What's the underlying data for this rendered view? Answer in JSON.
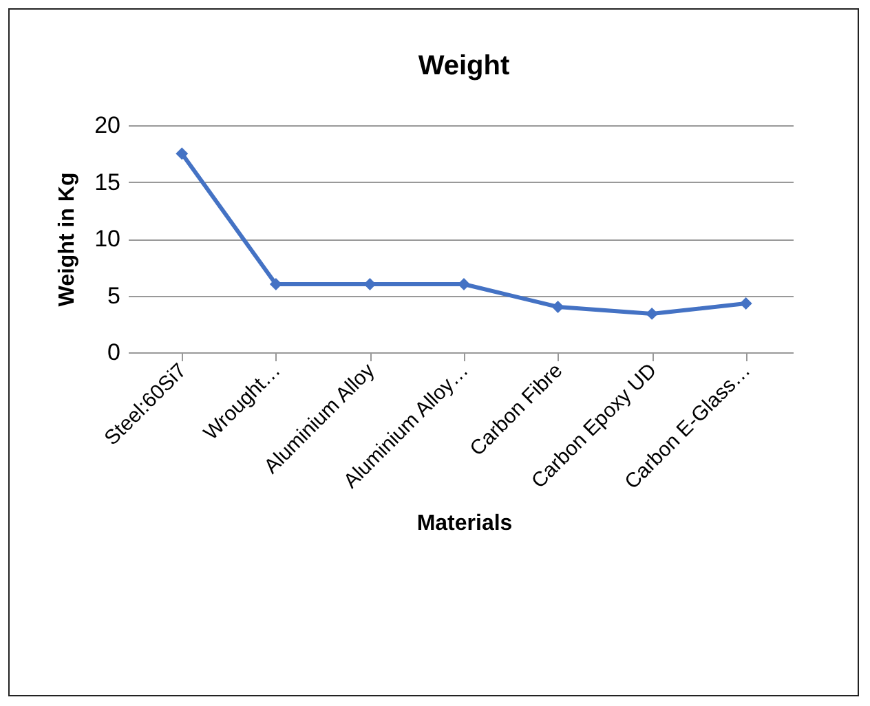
{
  "chart_data": {
    "type": "line",
    "title": "Weight",
    "xlabel": "Materials",
    "ylabel": "Weight in Kg",
    "categories": [
      "Steel:60Si7",
      "Wrought…",
      "Aluminium Alloy",
      "Aluminium Alloy…",
      "Carbon Fibre",
      "Carbon Epoxy UD",
      "Carbon E-Glass…"
    ],
    "series": [
      {
        "color": "#4472c4",
        "values": [
          17.5,
          6,
          6,
          6,
          4,
          3.4,
          4.3
        ]
      }
    ],
    "ylim": [
      0,
      20
    ],
    "yticks": [
      0,
      5,
      10,
      15,
      20
    ],
    "grid": "y",
    "marker": "diamond",
    "line_style": "solid"
  }
}
